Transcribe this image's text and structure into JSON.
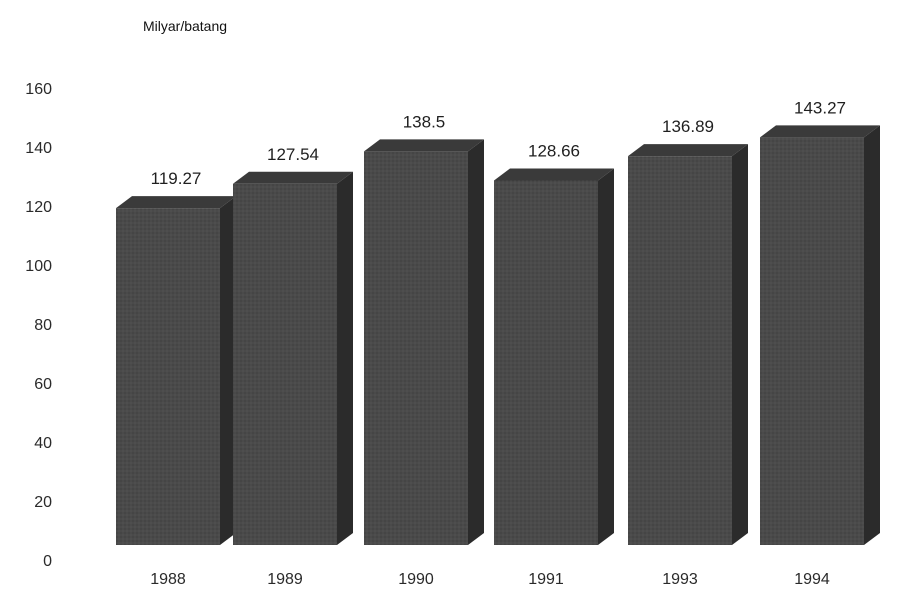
{
  "chart_data": {
    "type": "bar",
    "title": "",
    "ylabel": "Milyar/batang",
    "xlabel": "",
    "categories": [
      "1988",
      "1989",
      "1990",
      "1991",
      "1993",
      "1994"
    ],
    "values": [
      119.27,
      127.54,
      138.5,
      128.66,
      136.89,
      143.27
    ],
    "value_labels": [
      "119.27",
      "127.54",
      "138.5",
      "128.66",
      "136.89",
      "143.27"
    ],
    "ylim": [
      0,
      160
    ],
    "yticks": [
      0,
      20,
      40,
      60,
      80,
      100,
      120,
      140,
      160
    ],
    "grid": false,
    "legend": "none",
    "style": "3d-bar",
    "colors": {
      "bar_front": "#4a4a4a",
      "bar_side": "#2b2b2b",
      "bar_top": "#3a3a3a"
    }
  }
}
